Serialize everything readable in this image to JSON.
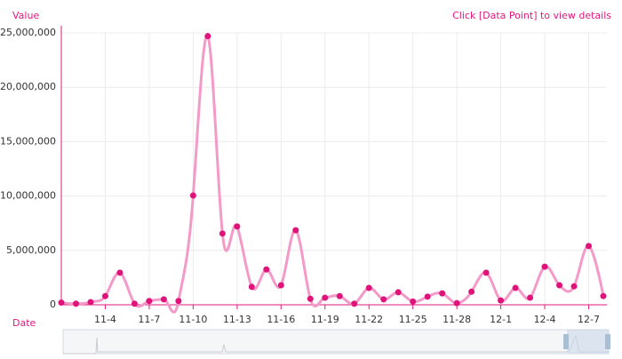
{
  "chart_data": {
    "type": "line",
    "y_label": "Value",
    "x_label": "Date",
    "annotation": "Click [Data Point] to view details",
    "categories": [
      null,
      null,
      null,
      "11-4",
      null,
      null,
      "11-7",
      null,
      null,
      "11-10",
      null,
      null,
      "11-13",
      null,
      null,
      "11-16",
      null,
      null,
      "11-19",
      null,
      null,
      "11-22",
      null,
      null,
      "11-25",
      null,
      null,
      "11-28",
      null,
      null,
      "12-1",
      null,
      null,
      "12-4",
      null,
      null,
      "12-7",
      null
    ],
    "series": [
      {
        "name": "Value",
        "color": "#f39ac9",
        "point_color": "#e0137a",
        "values": [
          200000,
          100000,
          250000,
          800000,
          2950000,
          100000,
          350000,
          500000,
          350000,
          10050000,
          24700000,
          6550000,
          7200000,
          1650000,
          3250000,
          1800000,
          6850000,
          550000,
          650000,
          800000,
          100000,
          1550000,
          500000,
          1150000,
          300000,
          750000,
          1050000,
          150000,
          1200000,
          2950000,
          400000,
          1550000,
          650000,
          3500000,
          1800000,
          1700000,
          5400000,
          800000
        ]
      }
    ],
    "ylim": [
      0,
      25000000
    ],
    "yticks": [
      0,
      {
        "value": 5000000,
        "label": "5,000,000"
      },
      {
        "value": 10000000,
        "label": "10,000,000"
      },
      {
        "value": 15000000,
        "label": "15,000,000"
      },
      {
        "value": 20000000,
        "label": "20,000,000"
      },
      {
        "value": 25000000,
        "label": "25,000,000"
      }
    ],
    "grid": true
  }
}
